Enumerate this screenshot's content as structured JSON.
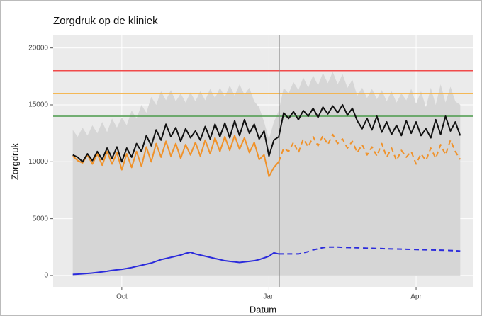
{
  "chart_data": {
    "type": "line",
    "title": "Zorgdruk op de kliniek",
    "xlabel": "Datum",
    "ylabel": "Zorgdruk",
    "xlim": [
      -1.4,
      7.17
    ],
    "ylim": [
      -1000,
      21100
    ],
    "xticks": [
      {
        "value": 0,
        "label": "Oct"
      },
      {
        "value": 3,
        "label": "Jan"
      },
      {
        "value": 6,
        "label": "Apr"
      }
    ],
    "yticks": [
      0,
      5000,
      10000,
      15000,
      20000
    ],
    "grid": true,
    "hlines": [
      {
        "value": 18000,
        "color": "#f04a4a"
      },
      {
        "value": 16000,
        "color": "#f5b041"
      },
      {
        "value": 14000,
        "color": "#4a9a4a"
      }
    ],
    "vlines": [
      3.21
    ],
    "x": [
      -1.0,
      -0.9,
      -0.8,
      -0.7,
      -0.6,
      -0.5,
      -0.4,
      -0.3,
      -0.2,
      -0.1,
      0.0,
      0.1,
      0.2,
      0.3,
      0.4,
      0.5,
      0.6,
      0.7,
      0.8,
      0.9,
      1.0,
      1.1,
      1.2,
      1.3,
      1.4,
      1.5,
      1.6,
      1.7,
      1.8,
      1.9,
      2.0,
      2.1,
      2.2,
      2.3,
      2.4,
      2.5,
      2.6,
      2.7,
      2.8,
      2.9,
      3.0,
      3.1,
      3.2,
      3.3,
      3.4,
      3.5,
      3.6,
      3.7,
      3.8,
      3.9,
      4.0,
      4.1,
      4.2,
      4.3,
      4.4,
      4.5,
      4.6,
      4.7,
      4.8,
      4.9,
      5.0,
      5.1,
      5.2,
      5.3,
      5.4,
      5.5,
      5.6,
      5.7,
      5.8,
      5.9,
      6.0,
      6.1,
      6.2,
      6.3,
      6.4,
      6.5,
      6.6,
      6.7,
      6.8,
      6.9
    ],
    "series": [
      {
        "style": "area",
        "color": "#d6d6d6",
        "values": [
          12800,
          12200,
          13000,
          12300,
          13200,
          12500,
          13500,
          12600,
          13800,
          13000,
          13900,
          13200,
          14500,
          13800,
          15000,
          14300,
          15700,
          15000,
          16200,
          15400,
          16300,
          15300,
          16000,
          15200,
          16100,
          15300,
          16200,
          15400,
          16400,
          15600,
          16500,
          15700,
          16700,
          15800,
          16800,
          15900,
          16500,
          15300,
          14800,
          13500,
          12000,
          13500,
          14500,
          16500,
          16000,
          17000,
          16300,
          17400,
          16500,
          17600,
          16700,
          17800,
          16900,
          17900,
          16800,
          17700,
          16500,
          17200,
          15800,
          16500,
          15600,
          16400,
          15500,
          16300,
          15300,
          16200,
          15200,
          16000,
          15400,
          16400,
          15100,
          16200,
          14800,
          16500,
          15000,
          16800,
          15200,
          16600,
          15300,
          15000
        ]
      },
      {
        "style": "solid",
        "color": "#f0922a",
        "values": [
          10500,
          10100,
          9900,
          10600,
          9800,
          10700,
          9700,
          10900,
          9800,
          10800,
          9300,
          10700,
          9500,
          10900,
          9600,
          11300,
          10000,
          11600,
          10400,
          11800,
          10500,
          11600,
          10300,
          11500,
          10600,
          11700,
          10500,
          11900,
          10700,
          12100,
          10900,
          12200,
          11000,
          12300,
          11100,
          12100,
          10800,
          11700,
          10200,
          10600,
          8700,
          9500,
          10000,
          null,
          null,
          null,
          null,
          null,
          null,
          null,
          null,
          null,
          null,
          null,
          null,
          null,
          null,
          null,
          null,
          null,
          null,
          null,
          null,
          null,
          null,
          null,
          null,
          null,
          null,
          null,
          null,
          null,
          null,
          null,
          null,
          null,
          null,
          null,
          null,
          null
        ]
      },
      {
        "style": "dashed",
        "color": "#f0922a",
        "values": [
          null,
          null,
          null,
          null,
          null,
          null,
          null,
          null,
          null,
          null,
          null,
          null,
          null,
          null,
          null,
          null,
          null,
          null,
          null,
          null,
          null,
          null,
          null,
          null,
          null,
          null,
          null,
          null,
          null,
          null,
          null,
          null,
          null,
          null,
          null,
          null,
          null,
          null,
          null,
          null,
          null,
          null,
          10000,
          11200,
          10900,
          11700,
          10800,
          12000,
          11300,
          12200,
          11400,
          12300,
          11500,
          12400,
          11600,
          12000,
          11200,
          11800,
          10800,
          11500,
          10600,
          11300,
          10500,
          11600,
          10400,
          11200,
          10100,
          11000,
          10400,
          10900,
          9800,
          10700,
          10100,
          11200,
          10300,
          11500,
          10600,
          11900,
          10900,
          10200
        ]
      },
      {
        "style": "solid",
        "color": "#111111",
        "values": [
          10600,
          10400,
          10000,
          10700,
          10100,
          10900,
          10200,
          11200,
          10300,
          11300,
          10000,
          11200,
          10400,
          11600,
          10900,
          12300,
          11400,
          12800,
          11900,
          13300,
          12200,
          13000,
          11800,
          12900,
          12100,
          12700,
          11900,
          13100,
          12000,
          13300,
          12200,
          13400,
          12100,
          13600,
          12300,
          13700,
          12500,
          13300,
          12000,
          12700,
          10500,
          11900,
          12200,
          14300,
          13800,
          14400,
          13700,
          14500,
          14000,
          14700,
          13900,
          14800,
          14200,
          14900,
          14300,
          15000,
          14100,
          14700,
          13600,
          12900,
          13800,
          12800,
          14000,
          12600,
          13500,
          12400,
          13200,
          12300,
          13600,
          12500,
          13500,
          12300,
          12900,
          12100,
          13700,
          12400,
          14000,
          12700,
          13500,
          12300
        ]
      },
      {
        "style": "solid",
        "color": "#2b2bdc",
        "values": [
          100,
          120,
          150,
          180,
          220,
          270,
          320,
          380,
          450,
          500,
          550,
          620,
          700,
          800,
          900,
          1000,
          1100,
          1250,
          1400,
          1500,
          1600,
          1700,
          1800,
          1950,
          2050,
          1900,
          1800,
          1700,
          1600,
          1500,
          1400,
          1300,
          1250,
          1200,
          1150,
          1200,
          1250,
          1300,
          1400,
          1550,
          1700,
          2000,
          1900,
          null,
          null,
          null,
          null,
          null,
          null,
          null,
          null,
          null,
          null,
          null,
          null,
          null,
          null,
          null,
          null,
          null,
          null,
          null,
          null,
          null,
          null,
          null,
          null,
          null,
          null,
          null,
          null,
          null,
          null,
          null,
          null,
          null,
          null,
          null,
          null,
          null
        ]
      },
      {
        "style": "dashed",
        "color": "#2b2bdc",
        "values": [
          null,
          null,
          null,
          null,
          null,
          null,
          null,
          null,
          null,
          null,
          null,
          null,
          null,
          null,
          null,
          null,
          null,
          null,
          null,
          null,
          null,
          null,
          null,
          null,
          null,
          null,
          null,
          null,
          null,
          null,
          null,
          null,
          null,
          null,
          null,
          null,
          null,
          null,
          null,
          null,
          null,
          null,
          1900,
          1900,
          1900,
          1900,
          1900,
          2000,
          2100,
          2250,
          2350,
          2450,
          2500,
          2500,
          2500,
          2480,
          2460,
          2450,
          2440,
          2420,
          2400,
          2390,
          2380,
          2370,
          2350,
          2340,
          2330,
          2320,
          2310,
          2300,
          2280,
          2270,
          2260,
          2250,
          2240,
          2230,
          2220,
          2200,
          2180,
          2150
        ]
      }
    ]
  }
}
